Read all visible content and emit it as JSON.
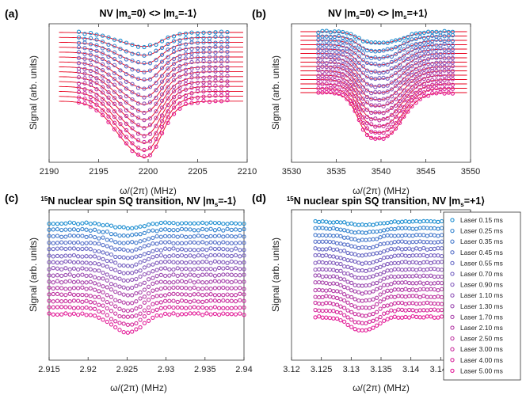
{
  "chart_data": [
    {
      "panel": "(a)",
      "title_main": "NV |m",
      "title_sub1": "s",
      "title_mid": "=0⟩ <> |m",
      "title_sub2": "s",
      "title_end": "=-1⟩",
      "type": "scatter",
      "xlabel": "ω/(2π) (MHz)",
      "ylabel": "Signal (arb. units)",
      "xlim": [
        2190,
        2210
      ],
      "xticks": [
        2190,
        2195,
        2200,
        2205,
        2210
      ],
      "xrange_data": [
        2193,
        2208
      ],
      "dip": {
        "center": 2198.8,
        "width": 2.2,
        "shoulder_center": 2200.3,
        "shoulder_width": 1.1
      },
      "fit_lines": true,
      "fit_color": "#e8001c"
    },
    {
      "panel": "(b)",
      "title_main": "NV |m",
      "title_sub1": "s",
      "title_mid": "=0⟩ <> |m",
      "title_sub2": "s",
      "title_end": "=+1⟩",
      "type": "scatter",
      "xlabel": "ω/(2π) (MHz)",
      "ylabel": "Signal (arb. units)",
      "xlim": [
        3530,
        3550
      ],
      "xticks": [
        3530,
        3535,
        3540,
        3545,
        3550
      ],
      "xrange_data": [
        3533,
        3548
      ],
      "dip": {
        "center": 3540.4,
        "width": 2.0,
        "shoulder_center": 3538.2,
        "shoulder_width": 1.0
      },
      "fit_lines": true,
      "fit_color": "#e8001c"
    },
    {
      "panel": "(c)",
      "title_sup": "15",
      "title_main": "N nuclear spin SQ transition, NV |m",
      "title_sub": "s",
      "title_end": "=-1⟩",
      "type": "scatter",
      "xlabel": "ω/(2π) (MHz)",
      "ylabel": "Signal (arb. units)",
      "xlim": [
        2.915,
        2.94
      ],
      "xticks": [
        "2.915",
        "2.92",
        "2.925",
        "2.93",
        "2.935",
        "2.94"
      ],
      "xrange_data": [
        2.915,
        2.94
      ],
      "dip": {
        "center": 2.9245,
        "width": 0.0018,
        "shoulder_center": 2.9265,
        "shoulder_width": 0.0012
      },
      "fit_lines": false
    },
    {
      "panel": "(d)",
      "title_sup": "15",
      "title_main": "N nuclear spin SQ transition, NV |m",
      "title_sub": "s",
      "title_end": "=+1⟩",
      "type": "scatter",
      "xlabel": "ω/(2π) (MHz)",
      "ylabel": "Signal (arb. units)",
      "xlim": [
        3.12,
        3.15
      ],
      "xticks": [
        "3.12",
        "3.125",
        "3.13",
        "3.135",
        "3.14",
        "3.145",
        "3.15"
      ],
      "xrange_data": [
        3.124,
        3.15
      ],
      "dip": {
        "center": 3.1315,
        "width": 0.002,
        "shoulder_center": 3.134,
        "shoulder_width": 0.0012
      },
      "fit_lines": false,
      "legend_location": "top-right"
    }
  ],
  "series": [
    {
      "name": "Laser 0.15 ms",
      "color": "#1f8fd1",
      "depth": 0.25
    },
    {
      "name": "Laser 0.25 ms",
      "color": "#3584cf",
      "depth": 0.32
    },
    {
      "name": "Laser 0.35 ms",
      "color": "#4a7ccd",
      "depth": 0.38
    },
    {
      "name": "Laser 0.45 ms",
      "color": "#5a73ca",
      "depth": 0.44
    },
    {
      "name": "Laser 0.55 ms",
      "color": "#696bc6",
      "depth": 0.5
    },
    {
      "name": "Laser 0.70 ms",
      "color": "#7764c2",
      "depth": 0.56
    },
    {
      "name": "Laser 0.90 ms",
      "color": "#845cbd",
      "depth": 0.62
    },
    {
      "name": "Laser 1.10 ms",
      "color": "#9156b8",
      "depth": 0.67
    },
    {
      "name": "Laser 1.30 ms",
      "color": "#9d4fb2",
      "depth": 0.72
    },
    {
      "name": "Laser 1.70 ms",
      "color": "#a947ad",
      "depth": 0.77
    },
    {
      "name": "Laser 2.10 ms",
      "color": "#b43fa8",
      "depth": 0.82
    },
    {
      "name": "Laser 2.50 ms",
      "color": "#bf38a3",
      "depth": 0.87
    },
    {
      "name": "Laser 3.00 ms",
      "color": "#ca309f",
      "depth": 0.92
    },
    {
      "name": "Laser 4.00 ms",
      "color": "#d62a9c",
      "depth": 0.97
    },
    {
      "name": "Laser 5.00 ms",
      "color": "#e3219a",
      "depth": 1.0
    }
  ]
}
